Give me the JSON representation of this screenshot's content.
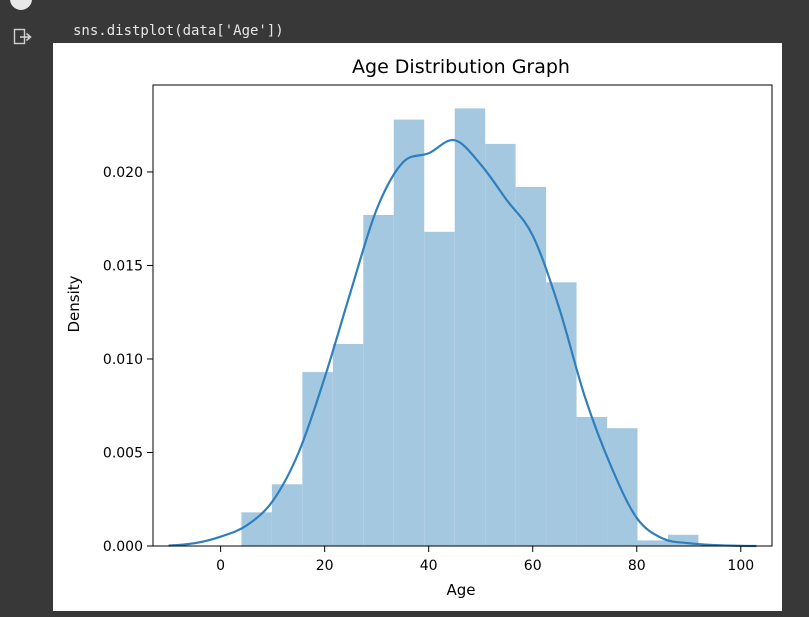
{
  "cell": {
    "code": "sns.distplot(data['Age'])"
  },
  "icons": {
    "run_indicator": "run-status-icon",
    "output": "output-arrow-icon"
  },
  "colors": {
    "background": "#383838",
    "bar_fill": "#a5c8e1",
    "kde_line": "#2f7fbc"
  },
  "chart_data": {
    "type": "bar",
    "title": "Age Distribution Graph",
    "xlabel": "Age",
    "ylabel": "Density",
    "xlim": [
      -13,
      106
    ],
    "ylim": [
      0,
      0.02465
    ],
    "xticks": [
      0,
      20,
      40,
      60,
      80,
      100
    ],
    "yticks": [
      0.0,
      0.005,
      0.01,
      0.015,
      0.02
    ],
    "ytick_labels": [
      "0.000",
      "0.005",
      "0.010",
      "0.015",
      "0.020"
    ],
    "xtick_labels": [
      "0",
      "20",
      "40",
      "60",
      "80",
      "100"
    ],
    "histogram": {
      "bin_edges": [
        4,
        9.86,
        15.71,
        21.57,
        27.43,
        33.29,
        39.14,
        45,
        50.86,
        56.71,
        62.57,
        68.43,
        74.29,
        80.14,
        86,
        91.86
      ],
      "densities": [
        0.0018,
        0.0033,
        0.0093,
        0.0108,
        0.0177,
        0.0228,
        0.0168,
        0.0234,
        0.0215,
        0.0192,
        0.0141,
        0.0069,
        0.0063,
        0.0003,
        0.0006
      ]
    },
    "kde": {
      "x": [
        -10,
        -5,
        0,
        5,
        10,
        15,
        20,
        25,
        30,
        35,
        40,
        45,
        50,
        55,
        60,
        65,
        70,
        75,
        80,
        85,
        90,
        95,
        100,
        103
      ],
      "y": [
        2e-05,
        0.00015,
        0.0005,
        0.0011,
        0.0024,
        0.005,
        0.009,
        0.0136,
        0.018,
        0.0205,
        0.021,
        0.0217,
        0.0204,
        0.0185,
        0.0166,
        0.0128,
        0.008,
        0.0043,
        0.0015,
        0.0004,
        0.00015,
        5e-05,
        1e-05,
        0.0
      ]
    }
  }
}
